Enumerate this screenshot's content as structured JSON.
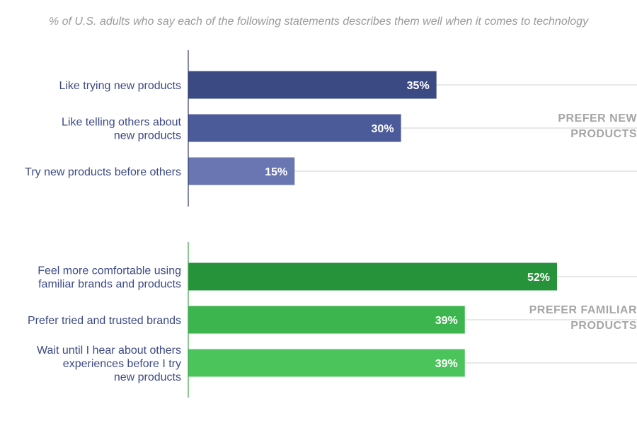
{
  "chart_data": {
    "type": "bar",
    "orientation": "horizontal",
    "subtitle": "% of U.S. adults who say each of the following statements describes them well when it comes to technology",
    "xlim": [
      0,
      58
    ],
    "groups": [
      {
        "label": "PREFER NEW PRODUCTS",
        "label_lines": [
          "PREFER NEW",
          "PRODUCTS"
        ],
        "axis_color": "#2e3a6e",
        "items": [
          {
            "label_lines": [
              "Like trying new products"
            ],
            "value": 35,
            "value_label": "35%",
            "color": "#3c4a84"
          },
          {
            "label_lines": [
              "Like telling others about",
              "new products"
            ],
            "value": 30,
            "value_label": "30%",
            "color": "#4b5a98"
          },
          {
            "label_lines": [
              "Try new products before others"
            ],
            "value": 15,
            "value_label": "15%",
            "color": "#6a76b2"
          }
        ]
      },
      {
        "label": "PREFER FAMILIAR PRODUCTS",
        "label_lines": [
          "PREFER FAMILIAR",
          "PRODUCTS"
        ],
        "axis_color": "#3aa64a",
        "items": [
          {
            "label_lines": [
              "Feel more comfortable using",
              "familiar brands and products"
            ],
            "value": 52,
            "value_label": "52%",
            "color": "#26933a"
          },
          {
            "label_lines": [
              "Prefer tried and trusted brands"
            ],
            "value": 39,
            "value_label": "39%",
            "color": "#3cb54e"
          },
          {
            "label_lines": [
              "Wait until I hear about others",
              "experiences before I try",
              "new products"
            ],
            "value": 39,
            "value_label": "39%",
            "color": "#4cc45c"
          }
        ]
      }
    ]
  }
}
